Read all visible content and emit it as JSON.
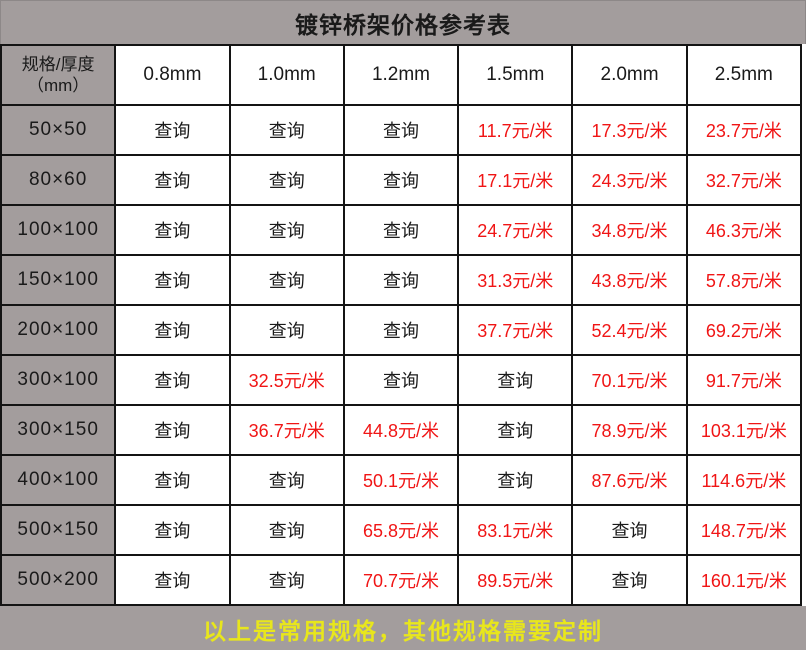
{
  "title": "镀锌桥架价格参考表",
  "footer_note": "以上是常用规格，其他规格需要定制",
  "colors": {
    "header_gray": "#a39d9d",
    "price_red": "#f01515",
    "note_yellow": "#e8e61c",
    "text_black": "#1a1a1a"
  },
  "table": {
    "corner_header_line1": "规格/厚度",
    "corner_header_line2": "（mm）",
    "thickness_headers": [
      "0.8mm",
      "1.0mm",
      "1.2mm",
      "1.5mm",
      "2.0mm",
      "2.5mm"
    ],
    "query_label": "查询",
    "price_unit_marker": "元/米",
    "rows": [
      {
        "spec": "50×50",
        "cells": [
          "查询",
          "查询",
          "查询",
          "11.7元/米",
          "17.3元/米",
          "23.7元/米"
        ]
      },
      {
        "spec": "80×60",
        "cells": [
          "查询",
          "查询",
          "查询",
          "17.1元/米",
          "24.3元/米",
          "32.7元/米"
        ]
      },
      {
        "spec": "100×100",
        "cells": [
          "查询",
          "查询",
          "查询",
          "24.7元/米",
          "34.8元/米",
          "46.3元/米"
        ]
      },
      {
        "spec": "150×100",
        "cells": [
          "查询",
          "查询",
          "查询",
          "31.3元/米",
          "43.8元/米",
          "57.8元/米"
        ]
      },
      {
        "spec": "200×100",
        "cells": [
          "查询",
          "查询",
          "查询",
          "37.7元/米",
          "52.4元/米",
          "69.2元/米"
        ]
      },
      {
        "spec": "300×100",
        "cells": [
          "查询",
          "32.5元/米",
          "查询",
          "查询",
          "70.1元/米",
          "91.7元/米"
        ]
      },
      {
        "spec": "300×150",
        "cells": [
          "查询",
          "36.7元/米",
          "44.8元/米",
          "查询",
          "78.9元/米",
          "103.1元/米"
        ]
      },
      {
        "spec": "400×100",
        "cells": [
          "查询",
          "查询",
          "50.1元/米",
          "查询",
          "87.6元/米",
          "114.6元/米"
        ]
      },
      {
        "spec": "500×150",
        "cells": [
          "查询",
          "查询",
          "65.8元/米",
          "83.1元/米",
          "查询",
          "148.7元/米"
        ]
      },
      {
        "spec": "500×200",
        "cells": [
          "查询",
          "查询",
          "70.7元/米",
          "89.5元/米",
          "查询",
          "160.1元/米"
        ]
      }
    ]
  }
}
